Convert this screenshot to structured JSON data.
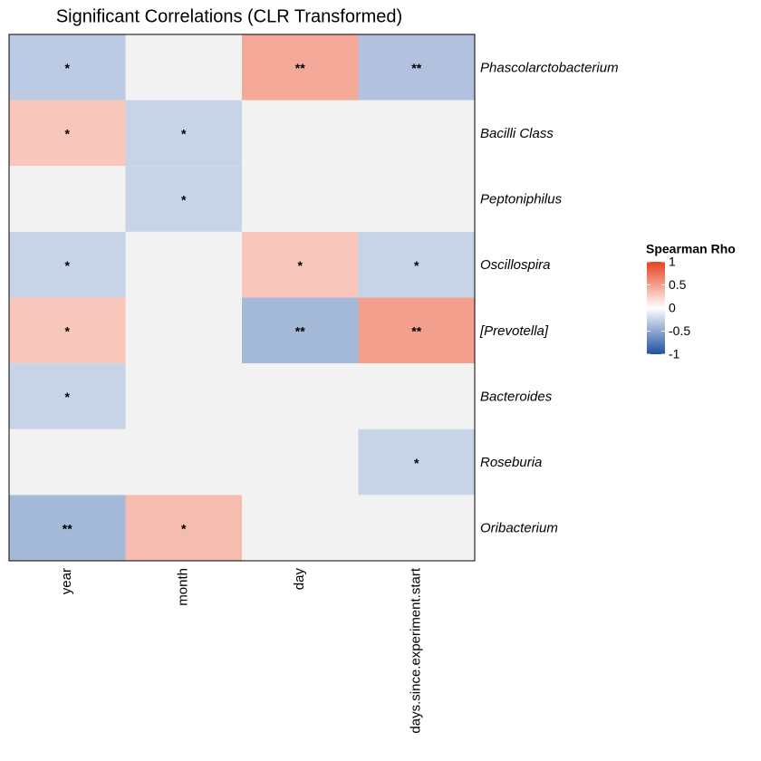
{
  "chart_data": {
    "type": "heatmap",
    "title": "Significant Correlations (CLR Transformed)",
    "x_categories": [
      "year",
      "month",
      "day",
      "days.since.experiment.start"
    ],
    "y_categories": [
      "Phascolarctobacterium",
      "Bacilli Class",
      "Peptoniphilus",
      "Oscillospira",
      "[Prevotella]",
      "Bacteroides",
      "Roseburia",
      "Oribacterium"
    ],
    "values": [
      [
        -0.3,
        null,
        0.45,
        -0.35
      ],
      [
        0.3,
        -0.25,
        null,
        null
      ],
      [
        null,
        -0.25,
        null,
        null
      ],
      [
        -0.25,
        null,
        0.3,
        -0.25
      ],
      [
        0.3,
        null,
        -0.4,
        0.5
      ],
      [
        -0.25,
        null,
        null,
        null
      ],
      [
        null,
        null,
        null,
        -0.25
      ],
      [
        -0.4,
        0.35,
        null,
        null
      ]
    ],
    "annotations": [
      [
        "*",
        null,
        "**",
        "**"
      ],
      [
        "*",
        "*",
        null,
        null
      ],
      [
        null,
        "*",
        null,
        null
      ],
      [
        "*",
        null,
        "*",
        "*"
      ],
      [
        "*",
        null,
        "**",
        "**"
      ],
      [
        "*",
        null,
        null,
        null
      ],
      [
        null,
        null,
        null,
        "*"
      ],
      [
        "**",
        "*",
        null,
        null
      ]
    ],
    "low_color": "#1f4fa0",
    "mid_color": "#ffffff",
    "high_color": "#e8401c",
    "na_color": "#f2f2f2",
    "colorbar": {
      "title": "Spearman Rho",
      "lim": [
        -1,
        1
      ],
      "ticks": [
        -1,
        -0.5,
        0,
        0.5,
        1
      ]
    }
  }
}
